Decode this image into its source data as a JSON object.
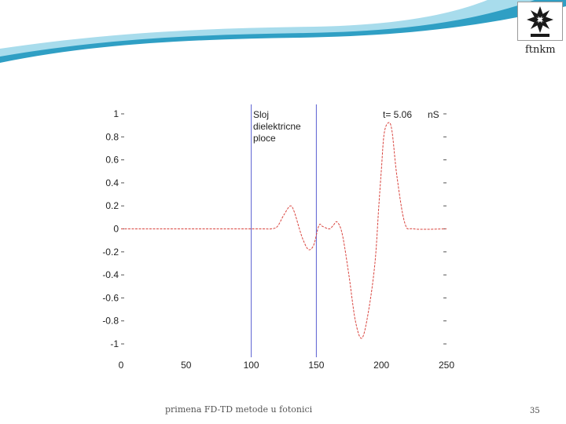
{
  "brand": {
    "name": "ftnkm",
    "logo": "snowflake-logo"
  },
  "footer": {
    "text": "primena FD-TD metode u fotonici",
    "page_number": "35"
  },
  "colors": {
    "swoosh_dark": "#2f9fc4",
    "swoosh_light": "#a8dcec",
    "pulse": "#d9453f",
    "slab_boundary": "#5a5fd2",
    "tick_text": "#222222"
  },
  "chart_data": {
    "type": "line",
    "xlim": [
      0,
      250
    ],
    "ylim": [
      -1,
      1
    ],
    "xticks": [
      0,
      50,
      100,
      150,
      200,
      250
    ],
    "yticks": [
      1,
      0.8,
      0.6,
      0.4,
      0.2,
      0,
      -0.2,
      -0.4,
      -0.6,
      -0.8,
      -1
    ],
    "xtick_labels": [
      "0",
      "50",
      "100",
      "150",
      "200",
      "250"
    ],
    "ytick_labels": [
      "1",
      "0.8",
      "0.6",
      "0.4",
      "0.2",
      "0",
      "-0.2",
      "-0.4",
      "-0.6",
      "-0.8",
      "-1"
    ],
    "grid": false,
    "annotation_lines": [
      "Sloj",
      "dielektricne",
      "ploce"
    ],
    "time_label": "t= 5.06",
    "time_unit": "nS",
    "slab_boundaries_x": [
      100,
      150
    ],
    "series": [
      {
        "color": "#d9453f",
        "style": "dashed",
        "x": [
          0,
          95,
          110,
          115,
          120,
          125,
          130,
          133,
          137,
          140,
          144,
          148,
          152,
          155,
          160,
          163,
          166,
          170,
          175,
          180,
          185,
          190,
          195,
          198,
          200,
          202,
          205,
          208,
          212,
          218,
          225,
          250
        ],
        "y": [
          0,
          0,
          0,
          0.0,
          0.02,
          0.12,
          0.2,
          0.15,
          0.0,
          -0.1,
          -0.18,
          -0.14,
          0.03,
          0.02,
          0.0,
          0.03,
          0.06,
          -0.05,
          -0.4,
          -0.8,
          -0.95,
          -0.72,
          -0.3,
          0.2,
          0.52,
          0.82,
          0.92,
          0.86,
          0.45,
          0.05,
          0,
          0
        ]
      }
    ]
  }
}
